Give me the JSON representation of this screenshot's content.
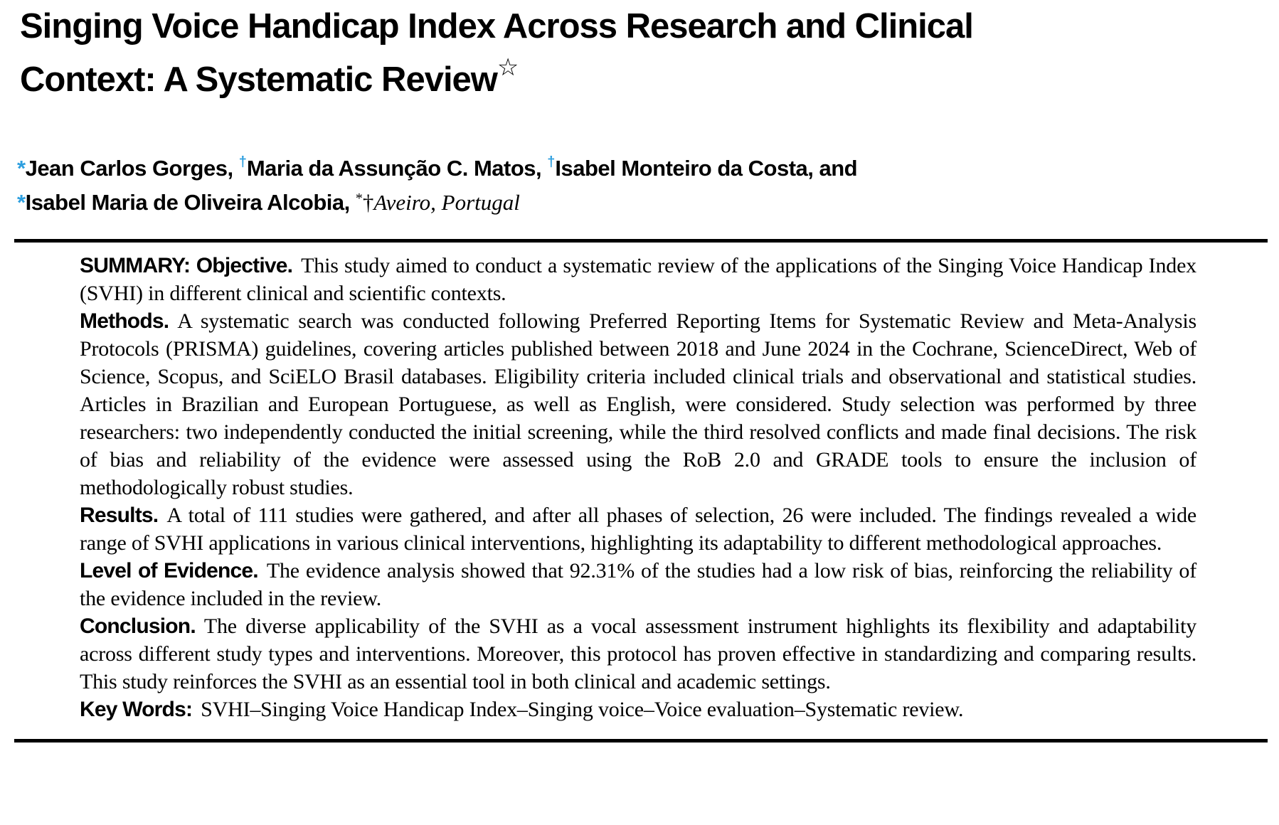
{
  "colors": {
    "accent_blue": "#2E9FDF",
    "text": "#000000",
    "background": "#FFFFFF"
  },
  "title": {
    "line1": "Singing Voice Handicap Index Across Research and Clinical",
    "line2": "Context: A Systematic Review",
    "star": "☆"
  },
  "authors": {
    "mark_asterisk": "*",
    "mark_dagger": "†",
    "author1": "Jean Carlos Gorges, ",
    "author2": "Maria da Assunção C. Matos, ",
    "author3": "Isabel Monteiro da Costa, and",
    "author4": "Isabel Maria de Oliveira Alcobia, ",
    "affiliation_mark_asterisk": "*",
    "affiliation_mark_dagger": "†",
    "affiliation_place": "Aveiro, Portugal"
  },
  "abstract": {
    "paragraphs": [
      {
        "label": "SUMMARY: Objective.",
        "text": "This study aimed to conduct a systematic review of the applications of the Singing Voice Handicap Index (SVHI) in different clinical and scientific contexts."
      },
      {
        "label": "Methods.",
        "text": "A systematic search was conducted following Preferred Reporting Items for Systematic Review and Meta-Analysis Protocols (PRISMA) guidelines, covering articles published between 2018 and June 2024 in the Cochrane, ScienceDirect, Web of Science, Scopus, and SciELO Brasil databases. Eligibility criteria included clinical trials and observational and statistical studies. Articles in Brazilian and European Portuguese, as well as English, were considered. Study selection was performed by three researchers: two independently conducted the initial screening, while the third resolved conflicts and made final decisions. The risk of bias and reliability of the evidence were assessed using the RoB 2.0 and GRADE tools to ensure the inclusion of methodologically robust studies."
      },
      {
        "label": "Results.",
        "text": "A total of 111 studies were gathered, and after all phases of selection, 26 were included. The findings revealed a wide range of SVHI applications in various clinical interventions, highlighting its adaptability to different methodological approaches."
      },
      {
        "label": "Level of Evidence.",
        "text": "The evidence analysis showed that 92.31% of the studies had a low risk of bias, reinforcing the reliability of the evidence included in the review."
      },
      {
        "label": "Conclusion.",
        "text": "The diverse applicability of the SVHI as a vocal assessment instrument highlights its flexibility and adaptability across different study types and interventions. Moreover, this protocol has proven effective in standardizing and comparing results. This study reinforces the SVHI as an essential tool in both clinical and academic settings."
      },
      {
        "label": "Key Words:",
        "text": "SVHI–Singing Voice Handicap Index–Singing voice–Voice evaluation–Systematic review."
      }
    ]
  }
}
